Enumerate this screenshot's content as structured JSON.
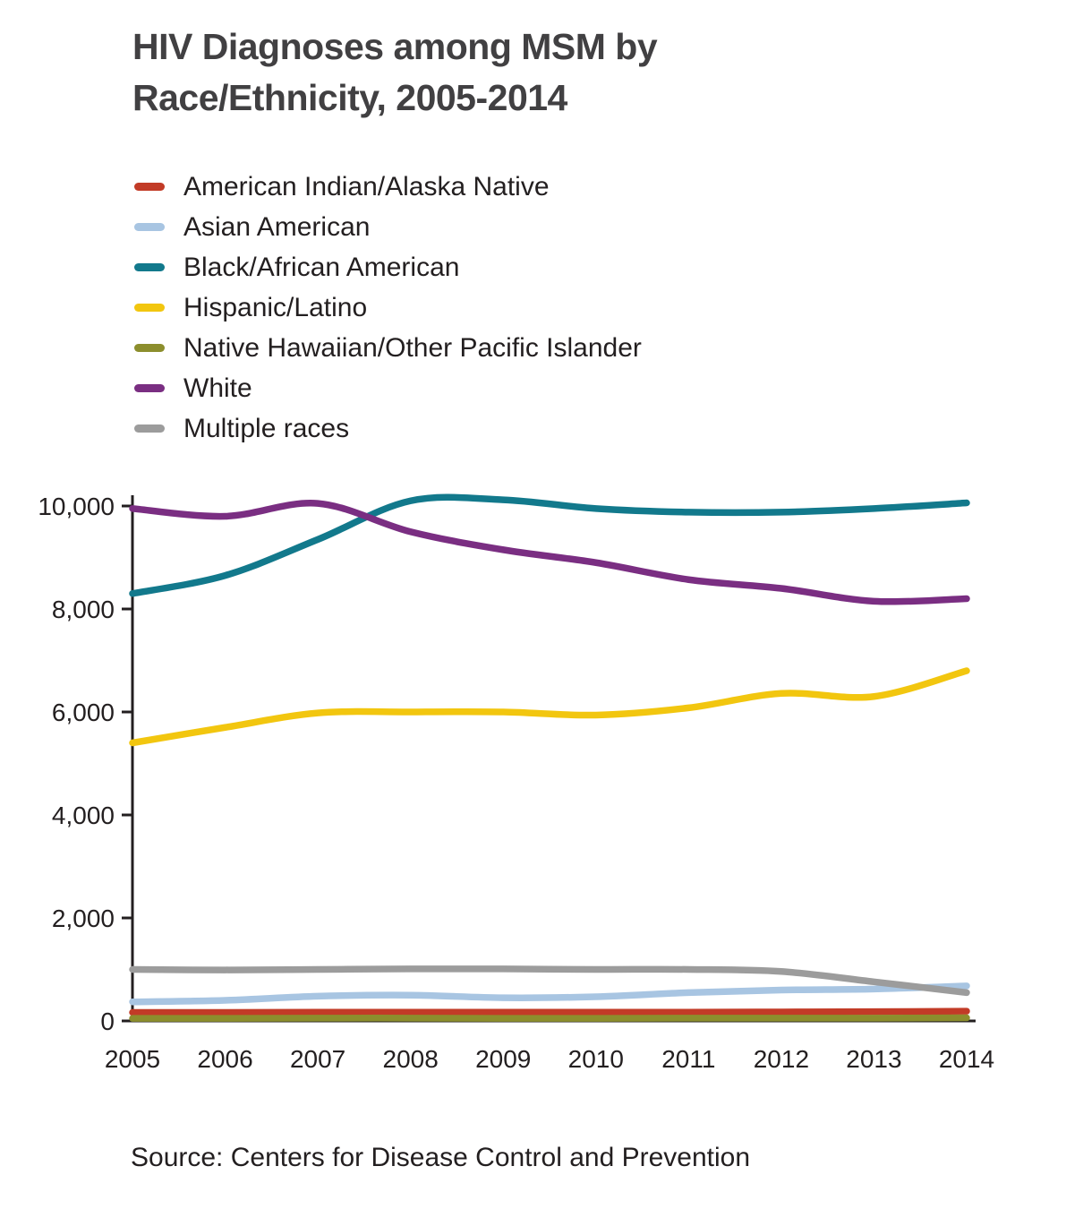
{
  "title": {
    "line1": "HIV Diagnoses among MSM by",
    "line2": "Race/Ethnicity, 2005-2014"
  },
  "source": "Source: Centers for Disease Control and Prevention",
  "colors": {
    "title_text": "#414042",
    "axis": "#231f20"
  },
  "chart_data": {
    "type": "line",
    "title": "HIV Diagnoses among MSM by Race/Ethnicity, 2005-2014",
    "xlabel": "",
    "ylabel": "",
    "grid": false,
    "legend_position": "top-left",
    "x": [
      2005,
      2006,
      2007,
      2008,
      2009,
      2010,
      2011,
      2012,
      2013,
      2014
    ],
    "xtick_labels": [
      "2005",
      "2006",
      "2007",
      "2008",
      "2009",
      "2010",
      "2011",
      "2012",
      "2013",
      "2014"
    ],
    "ylim": [
      0,
      10000
    ],
    "yticks": [
      0,
      2000,
      4000,
      6000,
      8000,
      10000
    ],
    "ytick_labels": [
      "0",
      "2,000",
      "4,000",
      "6,000",
      "8,000",
      "10,000"
    ],
    "series": [
      {
        "name": "American Indian/Alaska Native",
        "color": "#c23b27",
        "values": [
          165,
          165,
          170,
          170,
          170,
          170,
          170,
          175,
          180,
          190
        ]
      },
      {
        "name": "Asian American",
        "color": "#a8c5e2",
        "values": [
          370,
          400,
          480,
          500,
          450,
          470,
          550,
          600,
          620,
          680
        ]
      },
      {
        "name": "Black/African American",
        "color": "#12798c",
        "values": [
          8300,
          8650,
          9350,
          10100,
          10120,
          9950,
          9880,
          9880,
          9950,
          10060
        ]
      },
      {
        "name": "Hispanic/Latino",
        "color": "#f2c60f",
        "values": [
          5400,
          5700,
          5980,
          6000,
          6000,
          5940,
          6080,
          6360,
          6300,
          6800
        ]
      },
      {
        "name": "Native Hawaiian/Other Pacific Islander",
        "color": "#8c8e2d",
        "values": [
          50,
          50,
          55,
          55,
          50,
          50,
          55,
          55,
          55,
          60
        ]
      },
      {
        "name": "White",
        "color": "#7a2e82",
        "values": [
          9950,
          9800,
          10050,
          9500,
          9150,
          8900,
          8570,
          8400,
          8150,
          8200
        ]
      },
      {
        "name": "Multiple races",
        "color": "#9c9c9c",
        "values": [
          1000,
          990,
          1000,
          1010,
          1010,
          1000,
          1000,
          960,
          760,
          550
        ]
      }
    ]
  }
}
